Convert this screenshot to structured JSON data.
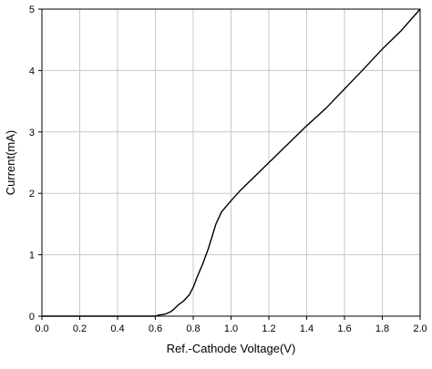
{
  "chart_data": {
    "type": "line",
    "title": "",
    "xlabel": "Ref.-Cathode Voltage(V)",
    "ylabel": "Current(mA)",
    "xlim": [
      0.0,
      2.0
    ],
    "ylim": [
      0,
      5
    ],
    "x_ticks": [
      "0.0",
      "0.2",
      "0.4",
      "0.6",
      "0.8",
      "1.0",
      "1.2",
      "1.4",
      "1.6",
      "1.8",
      "2.0"
    ],
    "y_ticks": [
      "0",
      "1",
      "2",
      "3",
      "4",
      "5"
    ],
    "grid": true,
    "legend": "none",
    "colors": {
      "line": "#000000",
      "grid": "#c8c8c8",
      "axis": "#000000",
      "background": "#ffffff"
    },
    "series": [
      {
        "x": [
          0.0,
          0.1,
          0.2,
          0.3,
          0.4,
          0.5,
          0.55,
          0.6,
          0.62,
          0.65,
          0.68,
          0.7,
          0.72,
          0.75,
          0.78,
          0.8,
          0.82,
          0.85,
          0.88,
          0.9,
          0.92,
          0.95,
          1.0,
          1.05,
          1.1,
          1.2,
          1.3,
          1.4,
          1.5,
          1.6,
          1.7,
          1.8,
          1.9,
          2.0
        ],
        "y": [
          0.0,
          0.0,
          0.0,
          0.0,
          0.0,
          0.0,
          0.0,
          0.0,
          0.02,
          0.03,
          0.07,
          0.12,
          0.18,
          0.25,
          0.35,
          0.47,
          0.63,
          0.85,
          1.1,
          1.3,
          1.5,
          1.7,
          1.88,
          2.05,
          2.2,
          2.5,
          2.8,
          3.1,
          3.38,
          3.7,
          4.02,
          4.35,
          4.65,
          5.0
        ]
      }
    ]
  }
}
